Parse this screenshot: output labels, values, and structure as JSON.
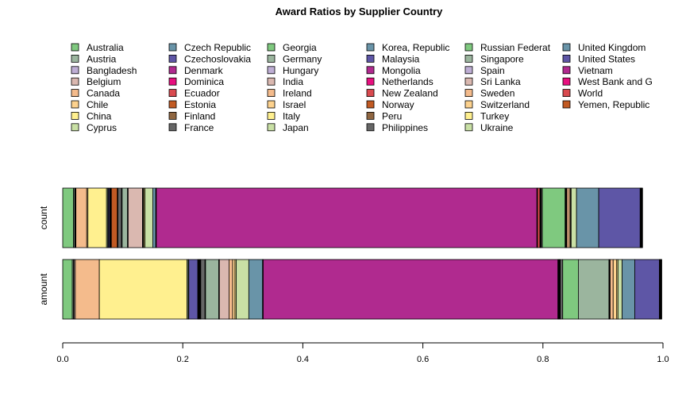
{
  "chart_data": {
    "type": "bar",
    "orientation": "horizontal",
    "stacked": true,
    "title": "Award Ratios by Supplier Country",
    "xlabel": "",
    "ylabel": "",
    "xlim": [
      0,
      1
    ],
    "x_ticks": [
      "0.0",
      "0.2",
      "0.4",
      "0.6",
      "0.8",
      "1.0"
    ],
    "x_tick_values": [
      0,
      0.2,
      0.4,
      0.6,
      0.8,
      1.0
    ],
    "categories": [
      "amount",
      "count"
    ],
    "legend_position": "top",
    "legend_columns": 6,
    "grid": false,
    "series": [
      {
        "name": "Australia",
        "color": "#7FC97F",
        "values": [
          0.016,
          0.018
        ]
      },
      {
        "name": "Austria",
        "color": "#9BB59E",
        "values": [
          0.002,
          0.002
        ]
      },
      {
        "name": "Bangladesh",
        "color": "#BEAED4",
        "values": [
          0.001,
          0.001
        ]
      },
      {
        "name": "Belgium",
        "color": "#DAB8B0",
        "values": [
          0.002,
          0.001
        ]
      },
      {
        "name": "Canada",
        "color": "#F4BB8C",
        "values": [
          0.04,
          0.018
        ]
      },
      {
        "name": "Chile",
        "color": "#FDD28E",
        "values": [
          0.0,
          0.002
        ]
      },
      {
        "name": "China",
        "color": "#FFF08F",
        "values": [
          0.146,
          0.031
        ]
      },
      {
        "name": "Cyprus",
        "color": "#C9E0A5",
        "values": [
          0.002,
          0.002
        ]
      },
      {
        "name": "Czech Republic",
        "color": "#6994A8",
        "values": [
          0.001,
          0.001
        ]
      },
      {
        "name": "Czechoslovakia",
        "color": "#5E56A6",
        "values": [
          0.015,
          0.002
        ]
      },
      {
        "name": "Denmark",
        "color": "#B02A8F",
        "values": [
          0.001,
          0.001
        ]
      },
      {
        "name": "Dominica",
        "color": "#E7107F",
        "values": [
          0.001,
          0.001
        ]
      },
      {
        "name": "Ecuador",
        "color": "#D94A4F",
        "values": [
          0.001,
          0.001
        ]
      },
      {
        "name": "Estonia",
        "color": "#C15A23",
        "values": [
          0.001,
          0.01
        ]
      },
      {
        "name": "Finland",
        "color": "#8F6641",
        "values": [
          0.001,
          0.001
        ]
      },
      {
        "name": "France",
        "color": "#666666",
        "values": [
          0.007,
          0.006
        ]
      },
      {
        "name": "Georgia",
        "color": "#7FC97F",
        "values": [
          0.001,
          0.001
        ]
      },
      {
        "name": "Germany",
        "color": "#9BB59E",
        "values": [
          0.022,
          0.009
        ]
      },
      {
        "name": "Hungary",
        "color": "#BEAED4",
        "values": [
          0.001,
          0.001
        ]
      },
      {
        "name": "India",
        "color": "#DAB8B0",
        "values": [
          0.016,
          0.024
        ]
      },
      {
        "name": "Ireland",
        "color": "#F4BB8C",
        "values": [
          0.006,
          0.001
        ]
      },
      {
        "name": "Israel",
        "color": "#FDD28E",
        "values": [
          0.004,
          0.001
        ]
      },
      {
        "name": "Italy",
        "color": "#FFF08F",
        "values": [
          0.002,
          0.002
        ]
      },
      {
        "name": "Japan",
        "color": "#C9E0A5",
        "values": [
          0.021,
          0.013
        ]
      },
      {
        "name": "Korea, Republic",
        "color": "#6994A8",
        "values": [
          0.023,
          0.005
        ]
      },
      {
        "name": "Malaysia",
        "color": "#5E56A6",
        "values": [
          0.001,
          0.001
        ]
      },
      {
        "name": "Mongolia",
        "color": "#B02A8F",
        "values": [
          0.491,
          0.634
        ]
      },
      {
        "name": "Netherlands",
        "color": "#E7107F",
        "values": [
          0.001,
          0.001
        ]
      },
      {
        "name": "New Zealand",
        "color": "#D94A4F",
        "values": [
          0.001,
          0.004
        ]
      },
      {
        "name": "Norway",
        "color": "#C15A23",
        "values": [
          0.001,
          0.001
        ]
      },
      {
        "name": "Peru",
        "color": "#8F6641",
        "values": [
          0.001,
          0.001
        ]
      },
      {
        "name": "Philippines",
        "color": "#666666",
        "values": [
          0.004,
          0.002
        ]
      },
      {
        "name": "Russian Federat",
        "color": "#7FC97F",
        "values": [
          0.026,
          0.038
        ]
      },
      {
        "name": "Singapore",
        "color": "#9BB59E",
        "values": [
          0.051,
          0.001
        ]
      },
      {
        "name": "Spain",
        "color": "#BEAED4",
        "values": [
          0.001,
          0.001
        ]
      },
      {
        "name": "Sri Lanka",
        "color": "#DAB8B0",
        "values": [
          0.001,
          0.001
        ]
      },
      {
        "name": "Sweden",
        "color": "#F4BB8C",
        "values": [
          0.005,
          0.004
        ]
      },
      {
        "name": "Switzerland",
        "color": "#FDD28E",
        "values": [
          0.006,
          0.002
        ]
      },
      {
        "name": "Turkey",
        "color": "#FFF08F",
        "values": [
          0.002,
          0.001
        ]
      },
      {
        "name": "Ukraine",
        "color": "#C9E0A5",
        "values": [
          0.007,
          0.009
        ]
      },
      {
        "name": "United Kingdom",
        "color": "#6994A8",
        "values": [
          0.021,
          0.037
        ]
      },
      {
        "name": "United States",
        "color": "#5E56A6",
        "values": [
          0.041,
          0.069
        ]
      },
      {
        "name": "Vietnam",
        "color": "#B02A8F",
        "values": [
          0.001,
          0.001
        ]
      },
      {
        "name": "West Bank and G",
        "color": "#E7107F",
        "values": [
          0.001,
          0.001
        ]
      },
      {
        "name": "World",
        "color": "#D94A4F",
        "values": [
          0.001,
          0.001
        ]
      },
      {
        "name": "Yemen, Republic",
        "color": "#C15A23",
        "values": [
          0.001,
          0.001
        ]
      }
    ]
  }
}
